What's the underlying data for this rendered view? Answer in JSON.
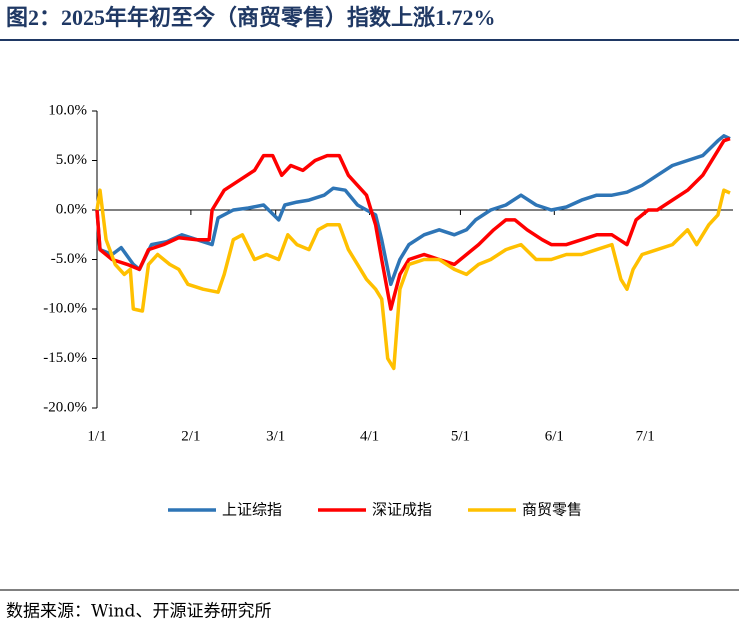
{
  "chart_data": {
    "type": "line",
    "title": "图2：2025年年初至今（商贸零售）指数上涨1.72%",
    "source": "数据来源：Wind、开源证券研究所",
    "xlim": [
      0,
      210
    ],
    "xticks": [
      {
        "value": 0,
        "label": "1/1"
      },
      {
        "value": 31,
        "label": "2/1"
      },
      {
        "value": 59,
        "label": "3/1"
      },
      {
        "value": 90,
        "label": "4/1"
      },
      {
        "value": 120,
        "label": "5/1"
      },
      {
        "value": 151,
        "label": "6/1"
      },
      {
        "value": 181,
        "label": "7/1"
      }
    ],
    "ylim": [
      -20,
      10
    ],
    "yticks": [
      {
        "value": 10,
        "label": "10.0%"
      },
      {
        "value": 5,
        "label": "5.0%"
      },
      {
        "value": 0,
        "label": "0.0%"
      },
      {
        "value": -5,
        "label": "-5.0%"
      },
      {
        "value": -10,
        "label": "-10.0%"
      },
      {
        "value": -15,
        "label": "-15.0%"
      },
      {
        "value": -20,
        "label": "-20.0%"
      }
    ],
    "legend": "bottom",
    "series": [
      {
        "name": "上证综指",
        "color": "#2e75b6",
        "x": [
          0,
          1,
          5,
          8,
          12,
          14,
          18,
          23,
          28,
          33,
          38,
          40,
          45,
          50,
          55,
          60,
          62,
          66,
          70,
          75,
          78,
          82,
          86,
          89,
          92,
          94,
          97,
          100,
          103,
          108,
          113,
          118,
          122,
          125,
          130,
          135,
          140,
          145,
          150,
          155,
          160,
          165,
          170,
          175,
          180,
          185,
          190,
          195,
          200,
          205,
          207,
          209
        ],
        "values": [
          0,
          -4,
          -4.5,
          -3.8,
          -5.5,
          -6,
          -3.5,
          -3.2,
          -2.5,
          -3,
          -3.5,
          -0.8,
          0,
          0.2,
          0.5,
          -1,
          0.5,
          0.8,
          1,
          1.5,
          2.2,
          2,
          0.5,
          0,
          -0.5,
          -3,
          -7.5,
          -5,
          -3.5,
          -2.5,
          -2,
          -2.5,
          -2,
          -1,
          0,
          0.5,
          1.5,
          0.5,
          0,
          0.3,
          1,
          1.5,
          1.5,
          1.8,
          2.5,
          3.5,
          4.5,
          5,
          5.5,
          7,
          7.5,
          7.2
        ]
      },
      {
        "name": "深证成指",
        "color": "#ff0000",
        "x": [
          0,
          1,
          5,
          10,
          14,
          17,
          22,
          27,
          33,
          37,
          38,
          42,
          47,
          52,
          55,
          58,
          61,
          64,
          68,
          72,
          76,
          80,
          83,
          86,
          89,
          92,
          94,
          97,
          100,
          103,
          108,
          113,
          118,
          122,
          126,
          131,
          135,
          138,
          142,
          147,
          150,
          155,
          160,
          165,
          170,
          175,
          178,
          182,
          185,
          190,
          195,
          200,
          205,
          207,
          209
        ],
        "values": [
          0,
          -4,
          -5,
          -5.5,
          -6,
          -4,
          -3.5,
          -2.8,
          -3,
          -3,
          0,
          2,
          3,
          4,
          5.5,
          5.5,
          3.5,
          4.5,
          4,
          5,
          5.5,
          5.5,
          3.5,
          2.5,
          1.5,
          -1.5,
          -5,
          -10,
          -6.5,
          -5,
          -4.5,
          -5,
          -5.5,
          -4.5,
          -3.5,
          -2,
          -1,
          -1,
          -2,
          -3,
          -3.5,
          -3.5,
          -3,
          -2.5,
          -2.5,
          -3.5,
          -1,
          0,
          0,
          1,
          2,
          3.5,
          6,
          7,
          7.2
        ]
      },
      {
        "name": "商贸零售",
        "color": "#ffc000",
        "x": [
          0,
          1,
          3,
          6,
          9,
          11,
          12,
          15,
          17,
          20,
          24,
          27,
          30,
          35,
          40,
          42,
          45,
          48,
          52,
          56,
          60,
          63,
          66,
          70,
          73,
          76,
          80,
          83,
          86,
          89,
          92,
          94,
          96,
          98,
          100,
          103,
          108,
          113,
          118,
          122,
          126,
          130,
          135,
          140,
          145,
          150,
          155,
          160,
          165,
          170,
          173,
          175,
          177,
          180,
          185,
          190,
          195,
          198,
          202,
          205,
          207,
          209
        ],
        "values": [
          0,
          2,
          -3,
          -5.5,
          -6.5,
          -6,
          -10,
          -10.2,
          -5.5,
          -4.5,
          -5.5,
          -6,
          -7.5,
          -8,
          -8.3,
          -6.5,
          -3,
          -2.5,
          -5,
          -4.5,
          -5,
          -2.5,
          -3.5,
          -4,
          -2,
          -1.5,
          -1.5,
          -4,
          -5.5,
          -7,
          -8,
          -9,
          -15,
          -16,
          -8,
          -5.5,
          -5,
          -5,
          -6,
          -6.5,
          -5.5,
          -5,
          -4,
          -3.5,
          -5,
          -5,
          -4.5,
          -4.5,
          -4,
          -3.5,
          -7,
          -8,
          -6,
          -4.5,
          -4,
          -3.5,
          -2,
          -3.5,
          -1.5,
          -0.5,
          2,
          1.72
        ]
      }
    ]
  }
}
